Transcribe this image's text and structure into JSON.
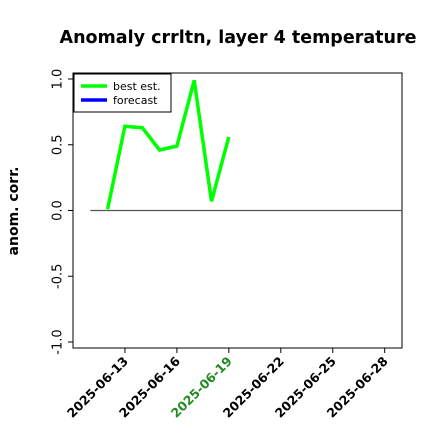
{
  "chart_data": {
    "type": "line",
    "title": "Anomaly crrltn, layer 4 temperature",
    "xlabel": "",
    "ylabel": "anom. corr.",
    "ylim": [
      -1.0,
      1.0
    ],
    "xlim": [
      "2025-06-10",
      "2025-06-29"
    ],
    "yticks": [
      "-1.0",
      "-0.5",
      "0.0",
      "0.5",
      "1.0"
    ],
    "xticks": [
      "2025-06-13",
      "2025-06-16",
      "2025-06-19",
      "2025-06-22",
      "2025-06-25",
      "2025-06-28"
    ],
    "highlighted_xtick": "2025-06-19",
    "highlight_color": "#228B22",
    "zero_line": {
      "x_start": "2025-06-11",
      "x_end": "2025-06-29",
      "y": 0.0,
      "color": "#555555"
    },
    "legend": {
      "placement": "upper-left",
      "entries": [
        "best est.",
        "forecast"
      ]
    },
    "series": [
      {
        "name": "best est.",
        "color": "#00ff00",
        "x": [
          "2025-06-12",
          "2025-06-13",
          "2025-06-14",
          "2025-06-15",
          "2025-06-16",
          "2025-06-17",
          "2025-06-18",
          "2025-06-19"
        ],
        "y": [
          0.01,
          0.64,
          0.63,
          0.46,
          0.49,
          0.99,
          0.07,
          0.56
        ]
      },
      {
        "name": "forecast",
        "color": "#0000ff",
        "x": [],
        "y": []
      }
    ]
  }
}
